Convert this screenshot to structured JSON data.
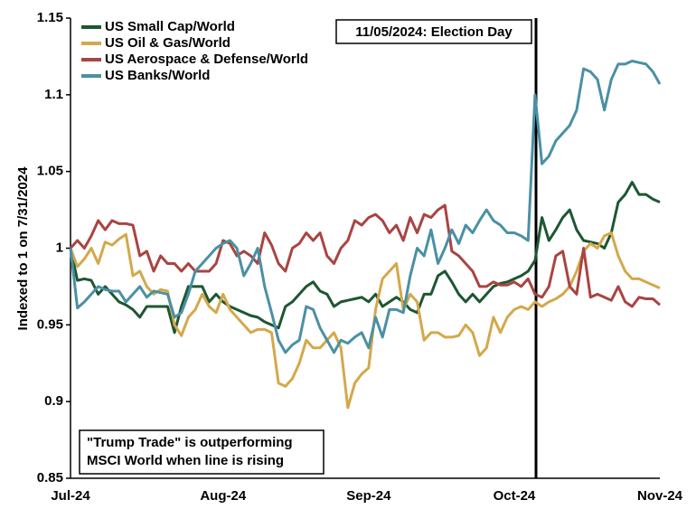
{
  "chart_data": {
    "type": "line",
    "y_label": "Indexed to 1 on 7/31/2024",
    "annotations": [
      "11/05/2024: Election Day",
      "\"Trump Trade\" is outperforming",
      "MSCI World when line is rising"
    ],
    "legend": "upper left",
    "categories": [
      "Jul-24",
      null,
      null,
      null,
      null,
      null,
      null,
      null,
      null,
      null,
      null,
      null,
      null,
      null,
      null,
      null,
      null,
      null,
      null,
      null,
      null,
      null,
      "Aug-24",
      null,
      null,
      null,
      null,
      null,
      null,
      null,
      null,
      null,
      null,
      null,
      null,
      null,
      null,
      null,
      null,
      null,
      null,
      null,
      null,
      "Sep-24",
      null,
      null,
      null,
      null,
      null,
      null,
      null,
      null,
      null,
      null,
      null,
      null,
      null,
      null,
      null,
      null,
      null,
      null,
      null,
      null,
      "Oct-24",
      null,
      null,
      null,
      null,
      null,
      null,
      null,
      null,
      null,
      null,
      null,
      null,
      null,
      null,
      null,
      null,
      null,
      null,
      null,
      null,
      "Nov-24"
    ],
    "ylim": [
      0.85,
      1.15
    ],
    "yticks": [
      0.85,
      0.9,
      0.95,
      1,
      1.05,
      1.1,
      1.15
    ],
    "series": [
      {
        "name": "US Small Cap/World",
        "color": "#1e5631",
        "values": [
          1.0,
          0.979,
          0.98,
          0.979,
          0.97,
          0.975,
          0.97,
          0.965,
          0.963,
          0.96,
          0.955,
          0.962,
          0.962,
          0.962,
          0.962,
          0.945,
          0.962,
          0.975,
          0.975,
          0.975,
          0.965,
          0.97,
          0.965,
          0.962,
          0.96,
          0.958,
          0.956,
          0.955,
          0.952,
          0.95,
          0.948,
          0.962,
          0.965,
          0.97,
          0.975,
          0.978,
          0.972,
          0.97,
          0.962,
          0.965,
          0.966,
          0.967,
          0.968,
          0.965,
          0.97,
          0.962,
          0.965,
          0.968,
          0.965,
          0.96,
          0.958,
          0.97,
          0.97,
          0.982,
          0.985,
          0.978,
          0.97,
          0.965,
          0.97,
          0.965,
          0.97,
          0.975,
          0.977,
          0.978,
          0.98,
          0.982,
          0.985,
          0.992,
          1.02,
          1.005,
          1.012,
          1.02,
          1.025,
          1.012,
          1.005,
          1.004,
          1.003,
          1.0,
          1.01,
          1.03,
          1.035,
          1.043,
          1.035,
          1.035,
          1.032,
          1.03
        ]
      },
      {
        "name": "US Oil & Gas/World",
        "color": "#d4a84b",
        "values": [
          1.0,
          0.988,
          0.993,
          1.0,
          0.99,
          1.004,
          1.002,
          1.006,
          1.009,
          0.982,
          0.985,
          0.975,
          0.97,
          0.973,
          0.972,
          0.95,
          0.943,
          0.955,
          0.96,
          0.97,
          0.962,
          0.958,
          0.97,
          0.96,
          0.955,
          0.95,
          0.945,
          0.947,
          0.947,
          0.945,
          0.912,
          0.91,
          0.915,
          0.925,
          0.94,
          0.935,
          0.935,
          0.94,
          0.945,
          0.935,
          0.896,
          0.912,
          0.918,
          0.922,
          0.96,
          0.98,
          0.985,
          0.99,
          0.96,
          0.97,
          0.965,
          0.94,
          0.945,
          0.945,
          0.942,
          0.942,
          0.943,
          0.95,
          0.945,
          0.93,
          0.935,
          0.955,
          0.945,
          0.955,
          0.96,
          0.962,
          0.96,
          0.965,
          0.962,
          0.965,
          0.967,
          0.97,
          0.975,
          0.985,
          0.998,
          1.003,
          1.0,
          1.008,
          1.01,
          0.995,
          0.985,
          0.98,
          0.98,
          0.978,
          0.976,
          0.974
        ]
      },
      {
        "name": "US Aerospace & Defense/World",
        "color": "#a94442",
        "values": [
          1.0,
          1.005,
          1.0,
          1.008,
          1.018,
          1.012,
          1.018,
          1.016,
          1.016,
          1.015,
          0.995,
          0.998,
          0.985,
          0.995,
          0.99,
          0.99,
          0.985,
          0.99,
          0.985,
          0.985,
          0.985,
          0.99,
          1.005,
          1.003,
          0.995,
          0.998,
          0.995,
          0.99,
          1.01,
          1.002,
          0.99,
          0.985,
          1.0,
          1.003,
          1.01,
          1.005,
          1.01,
          0.995,
          0.99,
          1.0,
          1.005,
          1.018,
          1.015,
          1.02,
          1.022,
          1.018,
          1.01,
          1.015,
          1.005,
          1.02,
          1.01,
          1.022,
          1.02,
          1.025,
          1.028,
          0.998,
          0.995,
          0.99,
          0.985,
          0.975,
          0.975,
          0.978,
          0.976,
          0.976,
          0.978,
          0.975,
          0.98,
          0.97,
          0.968,
          0.975,
          0.995,
          0.998,
          0.975,
          0.97,
          1.0,
          0.968,
          0.97,
          0.968,
          0.966,
          0.975,
          0.965,
          0.962,
          0.968,
          0.967,
          0.967,
          0.963
        ]
      },
      {
        "name": "US Banks/World",
        "color": "#4a90a4",
        "values": [
          1.0,
          0.961,
          0.965,
          0.97,
          0.975,
          0.973,
          0.972,
          0.972,
          0.965,
          0.97,
          0.975,
          0.968,
          0.972,
          0.971,
          0.97,
          0.955,
          0.958,
          0.97,
          0.985,
          0.99,
          0.995,
          1.0,
          1.003,
          1.005,
          1.0,
          0.982,
          0.99,
          1.0,
          0.975,
          0.958,
          0.94,
          0.932,
          0.937,
          0.94,
          0.962,
          0.96,
          0.948,
          0.94,
          0.932,
          0.94,
          0.938,
          0.942,
          0.945,
          0.935,
          0.955,
          0.942,
          0.96,
          0.96,
          0.958,
          0.982,
          1.0,
          0.995,
          1.012,
          0.99,
          1.0,
          1.012,
          1.003,
          1.015,
          1.01,
          1.018,
          1.025,
          1.018,
          1.015,
          1.01,
          1.01,
          1.008,
          1.005,
          1.1,
          1.055,
          1.06,
          1.07,
          1.075,
          1.08,
          1.09,
          1.117,
          1.115,
          1.11,
          1.09,
          1.11,
          1.12,
          1.12,
          1.122,
          1.121,
          1.12,
          1.115,
          1.107
        ]
      }
    ]
  }
}
